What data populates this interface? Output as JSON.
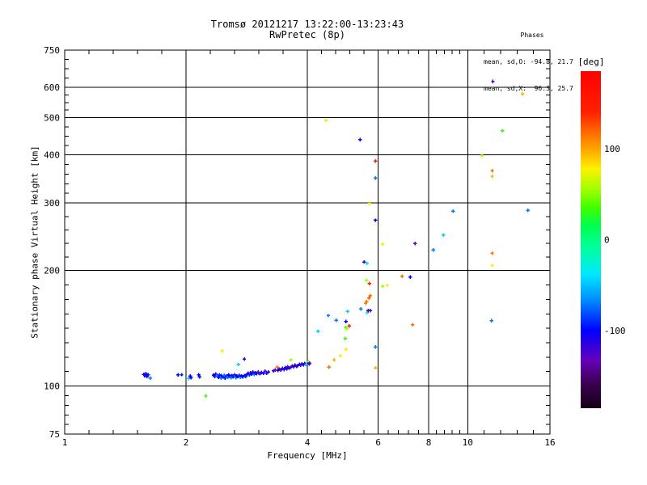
{
  "window": {
    "background": "#ffffff",
    "foreground": "#000000"
  },
  "chart_data": {
    "type": "scatter",
    "title": "Tromsø 20121217 13:22:00-13:23:43",
    "subtitle": "RwPretec (8p)",
    "stats": {
      "header": "Phases",
      "line_o": "mean, sd,O: -94.8, 21.7",
      "line_x": "mean, sd,X:  96.3, 25.7"
    },
    "xlabel": "Frequency [MHz]",
    "ylabel": "Stationary phase Virtual Height [km]",
    "x_scale": "log",
    "y_scale": "log",
    "xlim": [
      1,
      16
    ],
    "ylim": [
      75,
      750
    ],
    "grid": true,
    "x_major_ticks": [
      1,
      2,
      4,
      6,
      8,
      10,
      16
    ],
    "x_grid_ticks": [
      2,
      4,
      6,
      8,
      10
    ],
    "x_minor_ticks": [
      1.149,
      1.32,
      1.516,
      1.741,
      2.297,
      2.639,
      3.031,
      3.482,
      4.338,
      4.704,
      5.102,
      5.533,
      6.355,
      6.731,
      7.129,
      7.551,
      8.365,
      8.746,
      9.145,
      9.562,
      10.986,
      12.07,
      13.26,
      14.568
    ],
    "y_major_ticks": [
      75,
      100,
      200,
      300,
      400,
      500,
      600,
      750
    ],
    "y_grid_ticks": [
      100,
      200,
      300,
      400,
      500,
      600
    ],
    "y_minor_ticks": [
      79.4,
      84.1,
      89.1,
      94.4,
      109.1,
      118.9,
      129.7,
      141.4,
      154.2,
      168.2,
      183.4,
      216.9,
      235.2,
      255.1,
      276.6,
      317.8,
      336.6,
      356.5,
      377.6,
      422.9,
      447.2,
      472.9,
      523.3,
      547.7,
      573.2,
      634.3,
      670.8,
      709.3
    ],
    "colorbar": {
      "label": "[deg]",
      "ticks": [
        100,
        0,
        -100
      ],
      "range": [
        -185,
        185
      ],
      "stops": [
        [
          -185,
          "#140014"
        ],
        [
          -158,
          "#3c0050"
        ],
        [
          -132,
          "#6600bb"
        ],
        [
          -100,
          "#0000ff"
        ],
        [
          -65,
          "#0090ff"
        ],
        [
          -38,
          "#00e8ff"
        ],
        [
          -10,
          "#00ffa0"
        ],
        [
          15,
          "#00ff50"
        ],
        [
          35,
          "#40ff00"
        ],
        [
          55,
          "#a0ff00"
        ],
        [
          78,
          "#fff000"
        ],
        [
          95,
          "#ffb300"
        ],
        [
          115,
          "#ff7300"
        ],
        [
          140,
          "#ff2000"
        ],
        [
          185,
          "#ff0000"
        ]
      ]
    },
    "marker": "plus",
    "points_format": [
      "frequency_MHz",
      "virtual_height_km",
      "phase_deg"
    ],
    "points": [
      [
        1.57,
        107.3,
        -100
      ],
      [
        1.58,
        106.5,
        -112
      ],
      [
        1.59,
        107.8,
        -115
      ],
      [
        1.6,
        106.9,
        -100
      ],
      [
        1.6,
        105.9,
        -110
      ],
      [
        1.61,
        107.1,
        -95
      ],
      [
        1.63,
        104.9,
        -70
      ],
      [
        1.91,
        107.0,
        -100
      ],
      [
        1.95,
        107.1,
        -95
      ],
      [
        2.03,
        104.6,
        -45
      ],
      [
        2.05,
        106.3,
        -100
      ],
      [
        2.06,
        105.1,
        -110
      ],
      [
        2.15,
        107.0,
        -100
      ],
      [
        2.16,
        105.7,
        -95
      ],
      [
        2.24,
        94.3,
        35
      ],
      [
        2.46,
        123.5,
        80
      ],
      [
        2.34,
        106.8,
        -100
      ],
      [
        2.36,
        105.9,
        -95
      ],
      [
        2.37,
        107.4,
        -112
      ],
      [
        2.39,
        106.2,
        -70
      ],
      [
        2.41,
        105.4,
        -100
      ],
      [
        2.42,
        106.9,
        -90
      ],
      [
        2.44,
        105.0,
        -70
      ],
      [
        2.45,
        106.4,
        -100
      ],
      [
        2.47,
        105.7,
        -95
      ],
      [
        2.49,
        106.8,
        -70
      ],
      [
        2.5,
        104.9,
        -100
      ],
      [
        2.52,
        106.1,
        -90
      ],
      [
        2.54,
        105.3,
        -70
      ],
      [
        2.55,
        107.0,
        -100
      ],
      [
        2.57,
        106.0,
        -95
      ],
      [
        2.59,
        105.1,
        -70
      ],
      [
        2.6,
        106.6,
        -100
      ],
      [
        2.62,
        105.6,
        -90
      ],
      [
        2.64,
        106.9,
        -112
      ],
      [
        2.66,
        105.2,
        -70
      ],
      [
        2.67,
        106.3,
        -95
      ],
      [
        2.69,
        105.8,
        -100
      ],
      [
        2.7,
        113.8,
        -45
      ],
      [
        2.71,
        106.7,
        -90
      ],
      [
        2.73,
        105.4,
        -70
      ],
      [
        2.75,
        106.1,
        -100
      ],
      [
        2.77,
        105.6,
        -95
      ],
      [
        2.79,
        117.5,
        -115
      ],
      [
        2.79,
        106.4,
        -100
      ],
      [
        2.81,
        105.9,
        -90
      ],
      [
        2.83,
        107.2,
        -100
      ],
      [
        2.85,
        108.0,
        -110
      ],
      [
        2.87,
        107.0,
        -90
      ],
      [
        2.89,
        108.4,
        -130
      ],
      [
        2.91,
        107.5,
        -100
      ],
      [
        2.93,
        108.8,
        -95
      ],
      [
        2.95,
        107.3,
        -70
      ],
      [
        2.97,
        108.2,
        -112
      ],
      [
        2.99,
        107.8,
        -100
      ],
      [
        3.02,
        108.9,
        -130
      ],
      [
        3.05,
        107.6,
        -95
      ],
      [
        3.08,
        108.5,
        -110
      ],
      [
        3.11,
        107.9,
        -100
      ],
      [
        3.14,
        109.3,
        -130
      ],
      [
        3.17,
        108.1,
        -95
      ],
      [
        3.2,
        108.7,
        -110
      ],
      [
        3.3,
        109.5,
        -110
      ],
      [
        3.33,
        110.2,
        -130
      ],
      [
        3.37,
        112.1,
        115
      ],
      [
        3.38,
        109.8,
        -100
      ],
      [
        3.41,
        110.8,
        -140
      ],
      [
        3.44,
        110.0,
        -110
      ],
      [
        3.47,
        111.3,
        -95
      ],
      [
        3.5,
        110.5,
        -130
      ],
      [
        3.53,
        111.8,
        -110
      ],
      [
        3.56,
        110.9,
        -100
      ],
      [
        3.58,
        112.4,
        -140
      ],
      [
        3.61,
        111.5,
        -110
      ],
      [
        3.64,
        117.1,
        55
      ],
      [
        3.64,
        112.0,
        -95
      ],
      [
        3.67,
        112.8,
        -130
      ],
      [
        3.7,
        112.2,
        -110
      ],
      [
        3.73,
        113.4,
        -100
      ],
      [
        3.76,
        112.6,
        -140
      ],
      [
        3.79,
        113.1,
        -112
      ],
      [
        3.82,
        113.9,
        -95
      ],
      [
        3.85,
        113.3,
        -130
      ],
      [
        3.88,
        114.2,
        -110
      ],
      [
        3.91,
        113.7,
        -100
      ],
      [
        3.94,
        114.6,
        -112
      ],
      [
        3.97,
        114.0,
        -130
      ],
      [
        4.0,
        114.9,
        -95
      ],
      [
        3.98,
        113.9,
        -40
      ],
      [
        4.02,
        115.8,
        60
      ],
      [
        4.04,
        114.3,
        -110
      ],
      [
        4.05,
        114.8,
        -130
      ],
      [
        4.53,
        112.0,
        115
      ],
      [
        4.66,
        117.1,
        95
      ],
      [
        4.83,
        120.0,
        80
      ],
      [
        4.99,
        124.6,
        80
      ],
      [
        4.96,
        133.0,
        30
      ],
      [
        5.9,
        111.6,
        95
      ],
      [
        5.9,
        126.5,
        -70
      ],
      [
        4.25,
        139.1,
        -45
      ],
      [
        4.51,
        152.6,
        -70
      ],
      [
        4.72,
        148.4,
        -70
      ],
      [
        4.99,
        142.0,
        30
      ],
      [
        5.01,
        141.0,
        55
      ],
      [
        5.08,
        143.5,
        140
      ],
      [
        4.99,
        147.2,
        -100
      ],
      [
        5.03,
        156.6,
        -45
      ],
      [
        5.43,
        158.7,
        -70
      ],
      [
        5.63,
        155.3,
        -25
      ],
      [
        5.73,
        157.3,
        -115
      ],
      [
        5.66,
        157.3,
        -145
      ],
      [
        5.58,
        164.3,
        110
      ],
      [
        5.61,
        166.0,
        115
      ],
      [
        5.69,
        169.4,
        120
      ],
      [
        5.73,
        171.9,
        115
      ],
      [
        5.7,
        185.0,
        140
      ],
      [
        5.61,
        188.4,
        55
      ],
      [
        5.53,
        210.6,
        -110
      ],
      [
        5.63,
        208.6,
        -40
      ],
      [
        6.15,
        182.1,
        55
      ],
      [
        6.32,
        183.0,
        80
      ],
      [
        6.87,
        193.2,
        115
      ],
      [
        7.2,
        192.3,
        -100
      ],
      [
        7.3,
        144.5,
        115
      ],
      [
        5.7,
        299.0,
        80
      ],
      [
        5.9,
        270.4,
        -100
      ],
      [
        5.9,
        348.0,
        -70
      ],
      [
        5.9,
        385.6,
        140
      ],
      [
        5.41,
        438.5,
        -110
      ],
      [
        4.45,
        492.0,
        80
      ],
      [
        6.15,
        234.0,
        80
      ],
      [
        7.4,
        235.0,
        -130
      ],
      [
        8.22,
        226.4,
        -70
      ],
      [
        8.7,
        247.3,
        -45
      ],
      [
        9.2,
        285.6,
        -70
      ],
      [
        14.1,
        287.0,
        -70
      ],
      [
        10.85,
        399.0,
        55
      ],
      [
        11.5,
        363.6,
        115
      ],
      [
        11.5,
        351.5,
        95
      ],
      [
        11.5,
        221.8,
        115
      ],
      [
        11.5,
        206.1,
        80
      ],
      [
        11.45,
        148.0,
        -70
      ],
      [
        11.55,
        621.0,
        -130
      ],
      [
        13.7,
        577.0,
        95
      ],
      [
        12.2,
        462.0,
        30
      ]
    ]
  }
}
